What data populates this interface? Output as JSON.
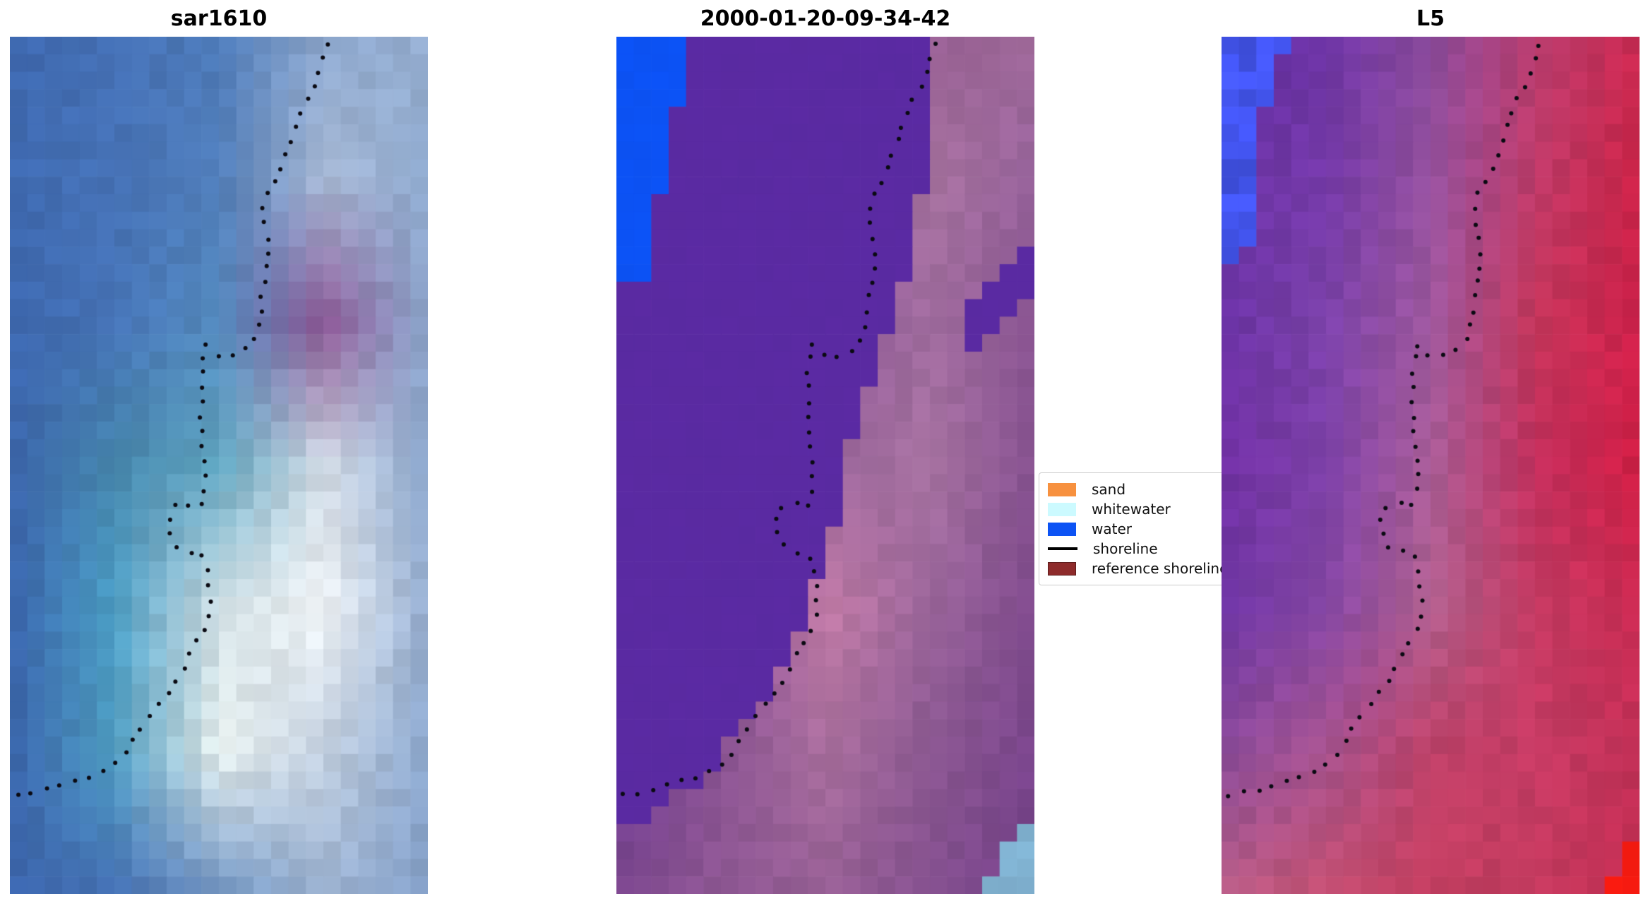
{
  "figure": {
    "panels": [
      {
        "title": "sar1610",
        "kind": "SAR backscatter image",
        "seed": 11,
        "jitter": 0.05,
        "grid": [
          [
            "#3e68af",
            "#4570b5",
            "#4d7ab8",
            "#8ba6cc",
            "#96aed0"
          ],
          [
            "#3f6ab1",
            "#4672b6",
            "#507db9",
            "#a9bad6",
            "#8ea9ce"
          ],
          [
            "#3d67ae",
            "#4673b6",
            "#548bbf",
            "#becSdc",
            "#8da8cd"
          ],
          [
            "#3c66ad",
            "#4585ab",
            "#60a5c0",
            "#d4dce6",
            "#8aa5cb"
          ],
          [
            "#3a63aa",
            "#4b9fc6",
            "#cfdde2",
            "#f2f6f8",
            "#93abce"
          ],
          [
            "#3a64ab",
            "#4e9dc2",
            "#e8f0ee",
            "#c2cfdf",
            "#8ba6cc"
          ],
          [
            "#3c66ad",
            "#4570b4",
            "#6f94c2",
            "#9db3d2",
            "#84a0c8"
          ]
        ],
        "patches": [],
        "shoreline": true
      },
      {
        "title": "2000-01-20-09-34-42",
        "kind": "classified image",
        "seed": 22,
        "jitter": 0.045,
        "grid": [
          [
            "#5a2aa2",
            "#5a2aa2",
            "#6d3894",
            "#9a6196",
            "#a06a9a"
          ],
          [
            "#5a2aa2",
            "#5a2aa2",
            "#7a4590",
            "#a873a0",
            "#96629a"
          ],
          [
            "#5a2aa2",
            "#5a2aa2",
            "#8a5494",
            "#a06c9e",
            "#8a5492"
          ],
          [
            "#5a2aa2",
            "#6d3a92",
            "#9a659a",
            "#a873a2",
            "#84508e"
          ],
          [
            "#5a2aa2",
            "#7a4590",
            "#c27ba6",
            "#9a659a",
            "#7f4a8c"
          ],
          [
            "#6d3a92",
            "#8a5392",
            "#aa6f9e",
            "#8a5790",
            "#7a458c"
          ],
          [
            "#7c478e",
            "#8e5793",
            "#965f94",
            "#84508e",
            "#74408a"
          ]
        ],
        "patches": [
          {
            "name": "water-class-region",
            "color": "#5a2aa2",
            "jitter": 0.008,
            "poly": [
              [
                0,
                0
              ],
              [
                0.76,
                0
              ],
              [
                0.755,
                0.06
              ],
              [
                0.745,
                0.12
              ],
              [
                0.72,
                0.22
              ],
              [
                0.69,
                0.28
              ],
              [
                0.66,
                0.32
              ],
              [
                0.63,
                0.36
              ],
              [
                0.6,
                0.41
              ],
              [
                0.575,
                0.45
              ],
              [
                0.555,
                0.49
              ],
              [
                0.545,
                0.52
              ],
              [
                0.525,
                0.555
              ],
              [
                0.51,
                0.585
              ],
              [
                0.49,
                0.62
              ],
              [
                0.465,
                0.655
              ],
              [
                0.43,
                0.7
              ],
              [
                0.385,
                0.745
              ],
              [
                0.33,
                0.79
              ],
              [
                0.265,
                0.83
              ],
              [
                0.195,
                0.865
              ],
              [
                0.115,
                0.895
              ],
              [
                0.045,
                0.915
              ],
              [
                0,
                0.925
              ]
            ]
          },
          {
            "name": "water-class-band",
            "color": "#5a2aa2",
            "jitter": 0.008,
            "poly": [
              [
                1,
                0.24
              ],
              [
                0.96,
                0.26
              ],
              [
                0.9,
                0.29
              ],
              [
                0.84,
                0.32
              ],
              [
                0.8,
                0.345
              ],
              [
                0.83,
                0.36
              ],
              [
                0.9,
                0.355
              ],
              [
                0.96,
                0.325
              ],
              [
                1,
                0.3
              ]
            ]
          },
          {
            "name": "open-water-patch",
            "color": "#0c52f4",
            "jitter": 0.015,
            "poly": [
              [
                0,
                0
              ],
              [
                0.19,
                0
              ],
              [
                0.16,
                0.05
              ],
              [
                0.13,
                0.1
              ],
              [
                0.11,
                0.16
              ],
              [
                0.09,
                0.22
              ],
              [
                0.075,
                0.27
              ],
              [
                0.05,
                0.285
              ],
              [
                0,
                0.285
              ]
            ]
          },
          {
            "name": "whitewater-corner-patch",
            "color": "#7fb0cf",
            "jitter": 0.05,
            "poly": [
              [
                1,
                0.895
              ],
              [
                0.865,
                1
              ],
              [
                1,
                1
              ]
            ]
          }
        ],
        "shoreline": true
      },
      {
        "title": "L5",
        "kind": "Landsat 5 false-colour image",
        "seed": 33,
        "jitter": 0.055,
        "grid": [
          [
            "#5e2a9e",
            "#6e35a6",
            "#8c4b9e",
            "#b83d6e",
            "#c92950"
          ],
          [
            "#6c34a6",
            "#7439a8",
            "#94519d",
            "#bd3a68",
            "#cc2347"
          ],
          [
            "#6a32a4",
            "#7c42aa",
            "#9e589e",
            "#c23559",
            "#ce204a"
          ],
          [
            "#7030a2",
            "#7c40a8",
            "#a85d96",
            "#c22f5d",
            "#d01e44"
          ],
          [
            "#6e35a4",
            "#8848a8",
            "#b0608e",
            "#c43a62",
            "#ca2a52"
          ],
          [
            "#8a4a9a",
            "#a6538e",
            "#be4168",
            "#c63b64",
            "#c33057"
          ],
          [
            "#b85e86",
            "#c24e70",
            "#c63f62",
            "#c23a5e",
            "#c42d52"
          ]
        ],
        "patches": [
          {
            "name": "water-corner-patch",
            "color": "#4355f0",
            "jitter": 0.12,
            "poly": [
              [
                0,
                0
              ],
              [
                0.165,
                0
              ],
              [
                0.135,
                0.035
              ],
              [
                0.105,
                0.075
              ],
              [
                0.09,
                0.125
              ],
              [
                0.08,
                0.185
              ],
              [
                0.06,
                0.25
              ],
              [
                0.045,
                0.27
              ],
              [
                0,
                0.27
              ]
            ]
          },
          {
            "name": "red-corner-patch",
            "color": "#f31a10",
            "jitter": 0.03,
            "poly": [
              [
                1,
                0.92
              ],
              [
                0.905,
                1
              ],
              [
                1,
                1
              ]
            ]
          }
        ],
        "shoreline": true
      }
    ],
    "legend": {
      "entries": [
        {
          "label": "sand",
          "color": "#f7913f",
          "kind": "patch"
        },
        {
          "label": "whitewater",
          "color": "#ccfaff",
          "kind": "patch"
        },
        {
          "label": "water",
          "color": "#0c53f4",
          "kind": "patch"
        },
        {
          "label": "shoreline",
          "color": "#000000",
          "kind": "line"
        },
        {
          "label": "reference shoreline",
          "color": "#8e2b2b",
          "kind": "patch"
        }
      ]
    },
    "shoreline_path": [
      [
        0.76,
        0.009
      ],
      [
        0.747,
        0.035
      ],
      [
        0.735,
        0.05
      ],
      [
        0.725,
        0.063
      ],
      [
        0.701,
        0.079
      ],
      [
        0.686,
        0.096
      ],
      [
        0.676,
        0.116
      ],
      [
        0.664,
        0.132
      ],
      [
        0.654,
        0.147
      ],
      [
        0.637,
        0.165
      ],
      [
        0.615,
        0.182
      ],
      [
        0.607,
        0.199
      ],
      [
        0.608,
        0.214
      ],
      [
        0.615,
        0.233
      ],
      [
        0.622,
        0.253
      ],
      [
        0.612,
        0.286
      ],
      [
        0.603,
        0.304
      ],
      [
        0.603,
        0.322
      ],
      [
        0.598,
        0.338
      ],
      [
        0.581,
        0.36
      ],
      [
        0.559,
        0.366
      ],
      [
        0.52,
        0.374
      ],
      [
        0.483,
        0.369
      ],
      [
        0.466,
        0.359
      ],
      [
        0.461,
        0.377
      ],
      [
        0.458,
        0.402
      ],
      [
        0.458,
        0.46
      ],
      [
        0.463,
        0.484
      ],
      [
        0.471,
        0.524
      ],
      [
        0.453,
        0.55
      ],
      [
        0.422,
        0.544
      ],
      [
        0.39,
        0.549
      ],
      [
        0.383,
        0.554
      ],
      [
        0.382,
        0.574
      ],
      [
        0.394,
        0.591
      ],
      [
        0.424,
        0.601
      ],
      [
        0.456,
        0.601
      ],
      [
        0.473,
        0.627
      ],
      [
        0.478,
        0.644
      ],
      [
        0.48,
        0.661
      ],
      [
        0.476,
        0.679
      ],
      [
        0.463,
        0.696
      ],
      [
        0.439,
        0.712
      ],
      [
        0.422,
        0.73
      ],
      [
        0.405,
        0.747
      ],
      [
        0.383,
        0.764
      ],
      [
        0.356,
        0.781
      ],
      [
        0.326,
        0.796
      ],
      [
        0.299,
        0.819
      ],
      [
        0.279,
        0.835
      ],
      [
        0.265,
        0.843
      ],
      [
        0.206,
        0.862
      ],
      [
        0.172,
        0.865
      ],
      [
        0.132,
        0.872
      ],
      [
        0.11,
        0.875
      ],
      [
        0.079,
        0.88
      ],
      [
        0.049,
        0.882
      ],
      [
        0.017,
        0.885
      ]
    ],
    "colors": {
      "background": "#ffffff",
      "shoreline_dot": "#0a0a12"
    }
  },
  "chart_data": {
    "type": "image",
    "description": "Three co-registered coastal satellite image panels with a detected shoreline plotted as black dotted markers; legend gives classification colours.",
    "panel_titles": [
      "sar1610",
      "2000-01-20-09-34-42",
      "L5"
    ],
    "legend_entries": [
      "sand",
      "whitewater",
      "water",
      "shoreline",
      "reference shoreline"
    ],
    "legend_colors": [
      "#f7913f",
      "#ccfaff",
      "#0c53f4",
      "#000000",
      "#8e2b2b"
    ],
    "series": [
      {
        "name": "shoreline",
        "units": "fraction of panel width/height",
        "points_ref": "figure.shoreline_path"
      }
    ],
    "grid": false,
    "legend_position": "right of middle panel, vertically centered, partially covered by third panel"
  }
}
